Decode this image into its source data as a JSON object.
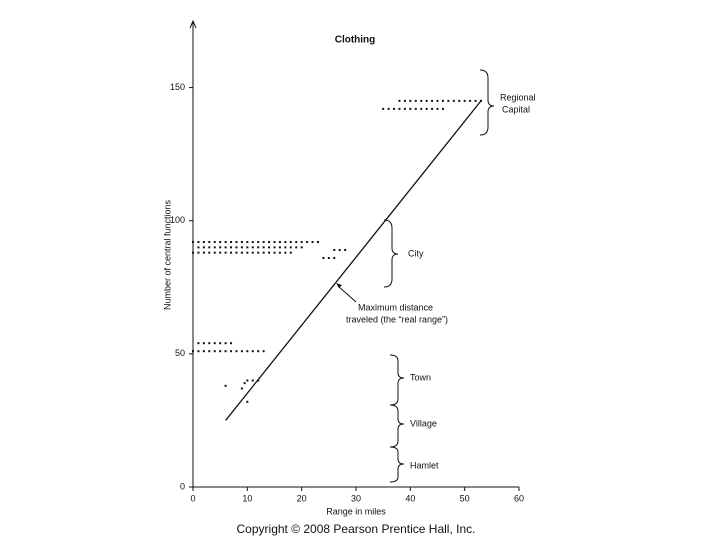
{
  "chart_data": {
    "type": "scatter",
    "title": "Clothing",
    "x_label": "Range in miles",
    "y_label": "Number of central functions",
    "xlim": [
      0,
      60
    ],
    "ylim": [
      0,
      175
    ],
    "xticks": [
      0,
      10,
      20,
      30,
      40,
      50,
      60
    ],
    "yticks": [
      0,
      50,
      100,
      150
    ],
    "series": [
      {
        "type": "scatter",
        "color": "#111111",
        "x": [
          38,
          39,
          40,
          41,
          42,
          43,
          44,
          45,
          46,
          47,
          48,
          49,
          50,
          51,
          52,
          53,
          35,
          36,
          37,
          38,
          39,
          40,
          41,
          42,
          43,
          44,
          45,
          46,
          0,
          1,
          2,
          3,
          4,
          5,
          6,
          7,
          8,
          9,
          10,
          11,
          12,
          13,
          14,
          15,
          16,
          17,
          18,
          19,
          20,
          21,
          22,
          23,
          1,
          2,
          3,
          4,
          5,
          6,
          7,
          8,
          9,
          10,
          11,
          12,
          13,
          14,
          15,
          16,
          17,
          18,
          19,
          20,
          0,
          1,
          2,
          3,
          4,
          5,
          6,
          7,
          8,
          9,
          10,
          11,
          12,
          13,
          14,
          15,
          16,
          17,
          18,
          26,
          27,
          28,
          24,
          25,
          26,
          1,
          2,
          3,
          4,
          5,
          6,
          7,
          0,
          1,
          2,
          3,
          4,
          5,
          6,
          7,
          8,
          9,
          10,
          11,
          12,
          13,
          6,
          9,
          9.5,
          10,
          11,
          12,
          10
        ],
        "values": [
          145,
          145,
          145,
          145,
          145,
          145,
          145,
          145,
          145,
          145,
          145,
          145,
          145,
          145,
          145,
          145,
          142,
          142,
          142,
          142,
          142,
          142,
          142,
          142,
          142,
          142,
          142,
          142,
          92,
          92,
          92,
          92,
          92,
          92,
          92,
          92,
          92,
          92,
          92,
          92,
          92,
          92,
          92,
          92,
          92,
          92,
          92,
          92,
          92,
          92,
          92,
          92,
          90,
          90,
          90,
          90,
          90,
          90,
          90,
          90,
          90,
          90,
          90,
          90,
          90,
          90,
          90,
          90,
          90,
          90,
          90,
          90,
          88,
          88,
          88,
          88,
          88,
          88,
          88,
          88,
          88,
          88,
          88,
          88,
          88,
          88,
          88,
          88,
          88,
          88,
          88,
          89,
          89,
          89,
          86,
          86,
          86,
          54,
          54,
          54,
          54,
          54,
          54,
          54,
          51,
          51,
          51,
          51,
          51,
          51,
          51,
          51,
          51,
          51,
          51,
          51,
          51,
          51,
          38,
          37,
          39,
          40,
          40,
          40,
          32
        ]
      },
      {
        "type": "line",
        "color": "#111111",
        "x": [
          6,
          53
        ],
        "values": [
          25,
          145
        ]
      }
    ],
    "annotations": [
      "Regional",
      "Capital",
      "City",
      "Maximum distance",
      "traveled (the “real range”)",
      "Town",
      "Village",
      "Hamlet"
    ],
    "footer": "Copyright © 2008 Pearson Prentice Hall, Inc."
  }
}
